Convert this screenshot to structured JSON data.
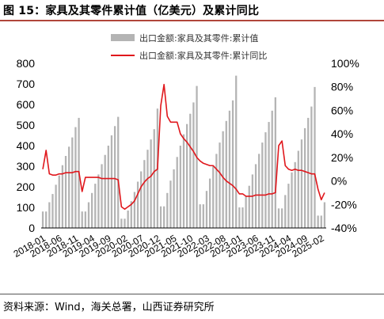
{
  "header": {
    "title": "图 15：家具及其零件累计值（亿美元）及累计同比"
  },
  "footer": {
    "source": "资料来源：Wind，海关总署，山西证券研究所"
  },
  "colors": {
    "bars": "#b4b4b4",
    "line": "#e0171c",
    "title_rule": "#b0453a"
  },
  "chart_data": {
    "type": "bar+line",
    "legend_placement": "top",
    "grid": false,
    "left_axis": {
      "ylim": [
        0,
        800
      ],
      "ticks": [
        "0",
        "100",
        "200",
        "300",
        "400",
        "500",
        "600",
        "700",
        "800"
      ]
    },
    "right_axis": {
      "ylim": [
        -40,
        100
      ],
      "ticks": [
        "-40%",
        "-20%",
        "0%",
        "20%",
        "40%",
        "60%",
        "80%",
        "100%"
      ]
    },
    "x_tick_labels": [
      "2018-01",
      "2018-06",
      "2018-11",
      "2019-04",
      "2019-09",
      "2020-02",
      "2020-07",
      "2020-12",
      "2021-05",
      "2021-10",
      "2022-03",
      "2022-08",
      "2023-01",
      "2023-06",
      "2023-11",
      "2024-04",
      "2024-09",
      "2025-02"
    ],
    "x": [
      "2018-01",
      "2018-02",
      "2018-03",
      "2018-04",
      "2018-05",
      "2018-06",
      "2018-07",
      "2018-08",
      "2018-09",
      "2018-10",
      "2018-11",
      "2018-12",
      "2019-01",
      "2019-02",
      "2019-03",
      "2019-04",
      "2019-05",
      "2019-06",
      "2019-07",
      "2019-08",
      "2019-09",
      "2019-10",
      "2019-11",
      "2019-12",
      "2020-01",
      "2020-02",
      "2020-03",
      "2020-04",
      "2020-05",
      "2020-06",
      "2020-07",
      "2020-08",
      "2020-09",
      "2020-10",
      "2020-11",
      "2020-12",
      "2021-01",
      "2021-02",
      "2021-03",
      "2021-04",
      "2021-05",
      "2021-06",
      "2021-07",
      "2021-08",
      "2021-09",
      "2021-10",
      "2021-11",
      "2021-12",
      "2022-01",
      "2022-02",
      "2022-03",
      "2022-04",
      "2022-05",
      "2022-06",
      "2022-07",
      "2022-08",
      "2022-09",
      "2022-10",
      "2022-11",
      "2022-12",
      "2023-01",
      "2023-02",
      "2023-03",
      "2023-04",
      "2023-05",
      "2023-06",
      "2023-07",
      "2023-08",
      "2023-09",
      "2023-10",
      "2023-11",
      "2023-12",
      "2024-01",
      "2024-02",
      "2024-03",
      "2024-04",
      "2024-05",
      "2024-06",
      "2024-07",
      "2024-08",
      "2024-09",
      "2024-10",
      "2024-11",
      "2024-12",
      "2025-01",
      "2025-02",
      "2025-03"
    ],
    "series": [
      {
        "name": "出口金额:家具及其零件:累计值",
        "type": "bar",
        "axis": "left",
        "values": [
          80,
          80,
          125,
          165,
          210,
          255,
          305,
          350,
          395,
          440,
          490,
          535,
          80,
          80,
          125,
          170,
          215,
          260,
          310,
          355,
          400,
          450,
          495,
          540,
          45,
          45,
          85,
          130,
          175,
          225,
          275,
          330,
          380,
          430,
          480,
          580,
          105,
          105,
          170,
          230,
          285,
          345,
          400,
          455,
          505,
          555,
          610,
          690,
          115,
          115,
          180,
          240,
          300,
          360,
          415,
          470,
          520,
          570,
          620,
          740,
          100,
          100,
          155,
          205,
          260,
          310,
          360,
          415,
          465,
          515,
          570,
          635,
          95,
          95,
          160,
          215,
          270,
          320,
          375,
          430,
          485,
          535,
          590,
          685,
          60,
          60,
          125
        ]
      },
      {
        "name": "出口金额:家具及其零件:累计同比",
        "type": "line",
        "axis": "right",
        "values": [
          10,
          26,
          6,
          5,
          5,
          6,
          6,
          7,
          7,
          7,
          8,
          8,
          -9,
          3,
          3,
          3,
          3,
          3,
          2,
          2,
          2,
          2,
          2,
          1,
          -22,
          -24,
          -22,
          -20,
          -17,
          -11,
          -5,
          -1,
          2,
          4,
          8,
          10,
          64,
          82,
          55,
          50,
          50,
          50,
          40,
          36,
          33,
          29,
          25,
          20,
          17,
          15,
          14,
          13,
          13,
          10,
          7,
          3,
          0,
          -2,
          -4,
          -7,
          -11,
          -11,
          -13,
          -13,
          -13,
          -12,
          -12,
          -12,
          -12,
          -11,
          -11,
          -10,
          30,
          34,
          13,
          10,
          9,
          10,
          9,
          9,
          8,
          7,
          6,
          6,
          -7,
          -16,
          -10
        ]
      }
    ]
  }
}
